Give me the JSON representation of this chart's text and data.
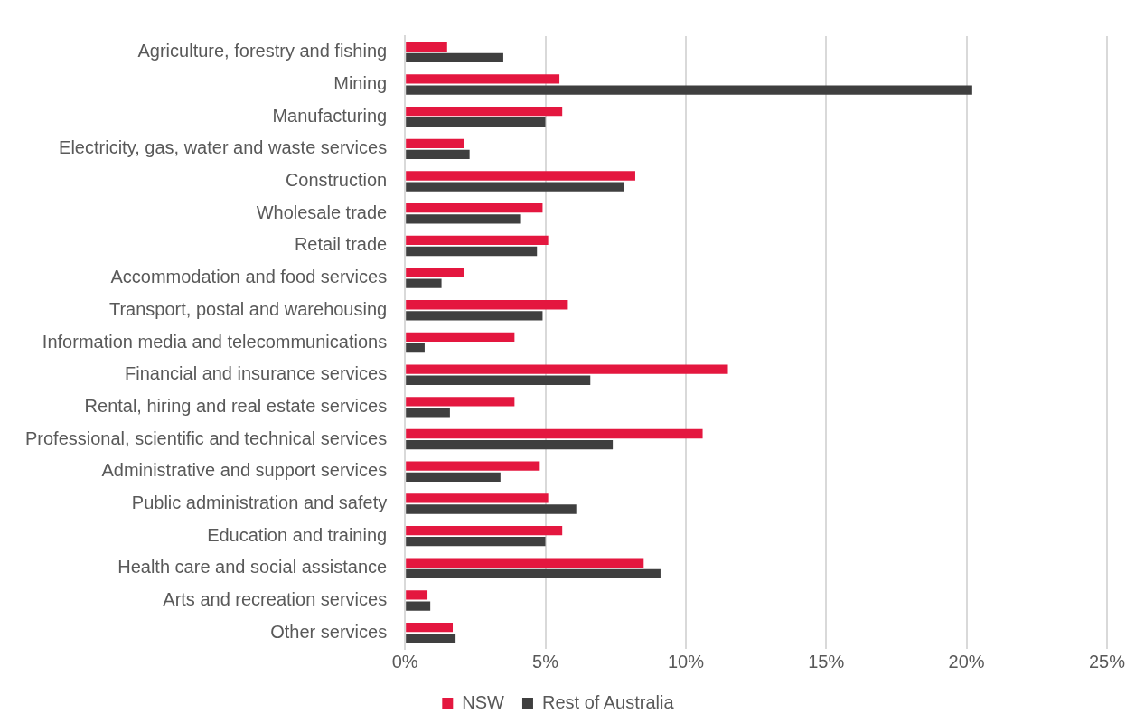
{
  "chart_data": {
    "type": "bar",
    "orientation": "horizontal",
    "categories": [
      "Agriculture, forestry and fishing",
      "Mining",
      "Manufacturing",
      "Electricity, gas, water and waste services",
      "Construction",
      "Wholesale trade",
      "Retail trade",
      "Accommodation and food services",
      "Transport, postal and warehousing",
      "Information media and telecommunications",
      "Financial and insurance services",
      "Rental, hiring and real estate services",
      "Professional, scientific and technical services",
      "Administrative and support services",
      "Public administration and safety",
      "Education and training",
      "Health care and social assistance",
      "Arts and recreation services",
      "Other services"
    ],
    "series": [
      {
        "name": "NSW",
        "color": "#e4173f",
        "values": [
          1.5,
          5.5,
          5.6,
          2.1,
          8.2,
          4.9,
          5.1,
          2.1,
          5.8,
          3.9,
          11.5,
          3.9,
          10.6,
          4.8,
          5.1,
          5.6,
          8.5,
          0.8,
          1.7
        ]
      },
      {
        "name": "Rest of Australia",
        "color": "#3f3f3f",
        "values": [
          3.5,
          20.2,
          5.0,
          2.3,
          7.8,
          4.1,
          4.7,
          1.3,
          4.9,
          0.7,
          6.6,
          1.6,
          7.4,
          3.4,
          6.1,
          5.0,
          9.1,
          0.9,
          1.8
        ]
      }
    ],
    "xlim": [
      0,
      25
    ],
    "xticks": [
      {
        "value": 0,
        "label": "0%"
      },
      {
        "value": 5,
        "label": "5%"
      },
      {
        "value": 10,
        "label": "10%"
      },
      {
        "value": 15,
        "label": "15%"
      },
      {
        "value": 20,
        "label": "20%"
      },
      {
        "value": 25,
        "label": "25%"
      }
    ],
    "grid": "x",
    "legend": "bottom"
  }
}
